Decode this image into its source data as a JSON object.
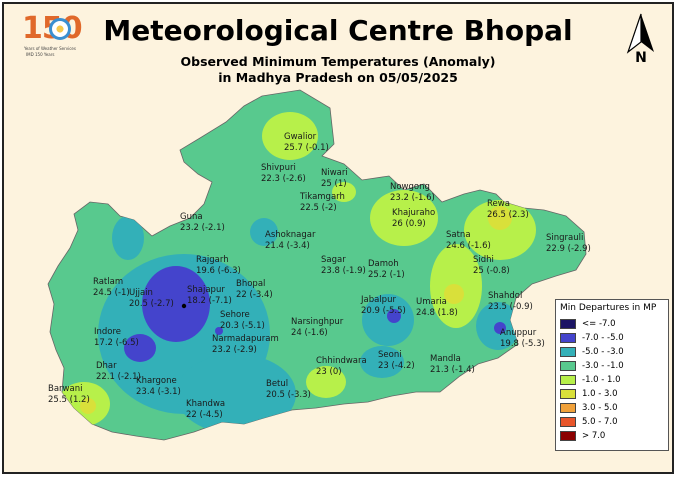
{
  "header": {
    "title": "Meteorological Centre Bhopal",
    "subtitle_line1": "Observed Minimum Temperatures (Anomaly)",
    "subtitle_line2": "in Madhya Pradesh on 05/05/2025",
    "logo_number": "150",
    "logo_text1": "Years of Weather Services",
    "logo_text2": "IMD 150 Years",
    "north_label": "N"
  },
  "legend": {
    "title": "Min Departures in MP",
    "items": [
      {
        "label": "<= -7.0",
        "color": "#1b1464"
      },
      {
        "label": "-7.0 - -5.0",
        "color": "#4444cc"
      },
      {
        "label": "-5.0 - -3.0",
        "color": "#33b0b8"
      },
      {
        "label": "-3.0 - -1.0",
        "color": "#58c98e"
      },
      {
        "label": "-1.0 - 1.0",
        "color": "#b7f04a"
      },
      {
        "label": "1.0 - 3.0",
        "color": "#d9e03a"
      },
      {
        "label": "3.0 - 5.0",
        "color": "#f0a13a"
      },
      {
        "label": "5.0 - 7.0",
        "color": "#e8552a"
      },
      {
        "label": "> 7.0",
        "color": "#8b0000"
      }
    ]
  },
  "stations": [
    {
      "name": "Gwalior",
      "value": "25.7 (-0.1)"
    },
    {
      "name": "Shivpuri",
      "value": "22.3 (-2.6)"
    },
    {
      "name": "Niwari",
      "value": "25 (1)"
    },
    {
      "name": "Nowgong",
      "value": "23.2 (-1.6)"
    },
    {
      "name": "Rewa",
      "value": "26.5 (2.3)"
    },
    {
      "name": "Tikamgarh",
      "value": "22.5 (-2)"
    },
    {
      "name": "Khajuraho",
      "value": "26 (0.9)"
    },
    {
      "name": "Singrauli",
      "value": "22.9 (-2.9)"
    },
    {
      "name": "Guna",
      "value": "23.2 (-2.1)"
    },
    {
      "name": "Ashoknagar",
      "value": "21.4 (-3.4)"
    },
    {
      "name": "Satna",
      "value": "24.6 (-1.6)"
    },
    {
      "name": "Rajgarh",
      "value": "19.6 (-6.3)"
    },
    {
      "name": "Sagar",
      "value": "23.8 (-1.9)"
    },
    {
      "name": "Damoh",
      "value": "25.2 (-1)"
    },
    {
      "name": "Sidhi",
      "value": "25 (-0.8)"
    },
    {
      "name": "Ratlam",
      "value": "24.5 (-1)"
    },
    {
      "name": "Ujjain",
      "value": "20.5 (-2.7)"
    },
    {
      "name": "Shajapur",
      "value": "18.2 (-7.1)"
    },
    {
      "name": "Bhopal",
      "value": "22 (-3.4)"
    },
    {
      "name": "Shahdol",
      "value": "23.5 (-0.9)"
    },
    {
      "name": "Umaria",
      "value": "24.8 (1.8)"
    },
    {
      "name": "Sehore",
      "value": "20.3 (-5.1)"
    },
    {
      "name": "Jabalpur",
      "value": "20.9 (-5.5)"
    },
    {
      "name": "Indore",
      "value": "17.2 (-6.5)"
    },
    {
      "name": "Narmadapuram",
      "value": "23.2 (-2.9)"
    },
    {
      "name": "Narsinghpur",
      "value": "24 (-1.6)"
    },
    {
      "name": "Anuppur",
      "value": "19.8 (-5.3)"
    },
    {
      "name": "Dhar",
      "value": "22.1 (-2.1)"
    },
    {
      "name": "Seoni",
      "value": "23 (-4.2)"
    },
    {
      "name": "Mandla",
      "value": "21.3 (-1.4)"
    },
    {
      "name": "Chhindwara",
      "value": "23 (0)"
    },
    {
      "name": "Khargone",
      "value": "23.4 (-3.1)"
    },
    {
      "name": "Barwani",
      "value": "25.5 (1.2)"
    },
    {
      "name": "Betul",
      "value": "20.5 (-3.3)"
    },
    {
      "name": "Khandwa",
      "value": "22 (-4.5)"
    }
  ]
}
